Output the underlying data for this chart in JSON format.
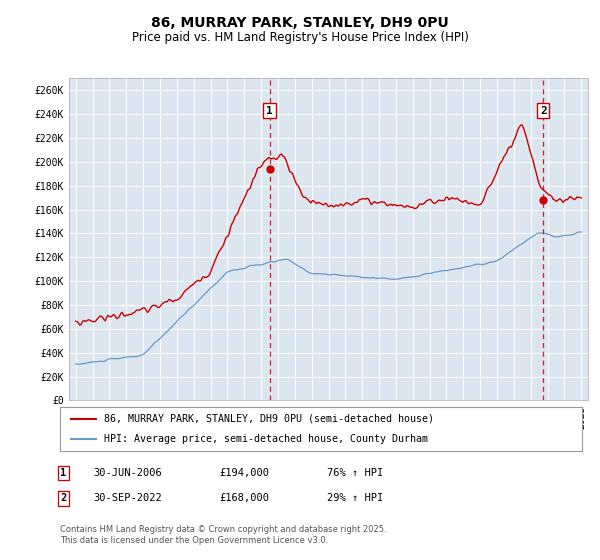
{
  "title": "86, MURRAY PARK, STANLEY, DH9 0PU",
  "subtitle": "Price paid vs. HM Land Registry's House Price Index (HPI)",
  "red_label": "86, MURRAY PARK, STANLEY, DH9 0PU (semi-detached house)",
  "blue_label": "HPI: Average price, semi-detached house, County Durham",
  "annotation1": {
    "label": "1",
    "date": "30-JUN-2006",
    "price": "£194,000",
    "hpi": "76% ↑ HPI"
  },
  "annotation2": {
    "label": "2",
    "date": "30-SEP-2022",
    "price": "£168,000",
    "hpi": "29% ↑ HPI"
  },
  "footer": "Contains HM Land Registry data © Crown copyright and database right 2025.\nThis data is licensed under the Open Government Licence v3.0.",
  "ylim": [
    0,
    270000
  ],
  "yticks": [
    0,
    20000,
    40000,
    60000,
    80000,
    100000,
    120000,
    140000,
    160000,
    180000,
    200000,
    220000,
    240000,
    260000
  ],
  "ytick_labels": [
    "£0",
    "£20K",
    "£40K",
    "£60K",
    "£80K",
    "£100K",
    "£120K",
    "£140K",
    "£160K",
    "£180K",
    "£200K",
    "£220K",
    "£240K",
    "£260K"
  ],
  "bg_color": "#dce6f1",
  "red_color": "#cc0000",
  "blue_color": "#6699cc",
  "marker1_x_year": 2006.5,
  "marker2_x_year": 2022.75,
  "marker1_y": 194000,
  "marker2_y": 168000,
  "xmin": 1995,
  "xmax": 2025
}
